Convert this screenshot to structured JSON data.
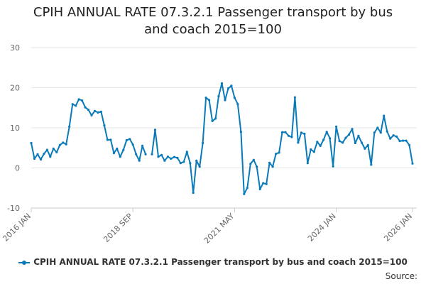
{
  "chart_data": {
    "type": "line",
    "title_lines": [
      "CPIH ANNUAL RATE 07.3.2.1 Passenger transport by bus",
      "and coach 2015=100"
    ],
    "x_tick_labels": [
      "2016 JAN",
      "2018 SEP",
      "2021 MAY",
      "2024 JAN",
      "2026 JAN"
    ],
    "x_tick_months": [
      0,
      32,
      64,
      96,
      120
    ],
    "y_ticks": [
      30,
      20,
      10,
      0,
      -10
    ],
    "ylim": [
      -10,
      30
    ],
    "xlabel": "",
    "ylabel": "",
    "grid": true,
    "legend_position": "bottom",
    "source_label": "Source:",
    "series": [
      {
        "name": "CPIH ANNUAL RATE 07.3.2.1 Passenger transport by bus and coach 2015=100",
        "color": "#0a7ab8",
        "month_index_of_first": 0,
        "values": [
          6.2,
          2.3,
          3.4,
          2.1,
          3.5,
          4.5,
          2.8,
          4.8,
          3.9,
          5.7,
          6.3,
          5.9,
          10.3,
          15.9,
          15.5,
          17.1,
          16.8,
          15.1,
          14.5,
          13.1,
          14.2,
          13.8,
          14.0,
          10.6,
          7.0,
          7.0,
          3.7,
          4.8,
          2.8,
          4.5,
          6.9,
          7.2,
          5.8,
          3.4,
          1.8,
          5.5,
          3.4,
          null,
          3.4,
          9.5,
          2.8,
          3.2,
          1.8,
          2.8,
          2.3,
          2.7,
          2.5,
          1.2,
          1.5,
          4.0,
          1.2,
          -6.2,
          1.8,
          0.3,
          6.2,
          17.5,
          16.9,
          11.7,
          12.3,
          17.9,
          21.1,
          16.9,
          19.8,
          20.5,
          17.5,
          15.9,
          9.0,
          -6.5,
          -5.0,
          1.0,
          2.0,
          0.3,
          -5.3,
          -3.8,
          -4.0,
          1.3,
          0.3,
          3.5,
          3.8,
          8.9,
          8.9,
          8.0,
          7.7,
          17.6,
          6.3,
          8.8,
          8.5,
          1.2,
          4.6,
          4.0,
          6.5,
          5.5,
          7.0,
          9.0,
          7.4,
          0.4,
          10.3,
          6.7,
          6.3,
          7.5,
          8.3,
          9.7,
          6.2,
          8.0,
          6.3,
          4.8,
          5.7,
          0.8,
          8.8,
          10.0,
          8.8,
          13.0,
          9.1,
          7.3,
          8.1,
          7.8,
          6.7,
          6.8,
          6.8,
          5.7,
          1.1
        ]
      }
    ]
  }
}
